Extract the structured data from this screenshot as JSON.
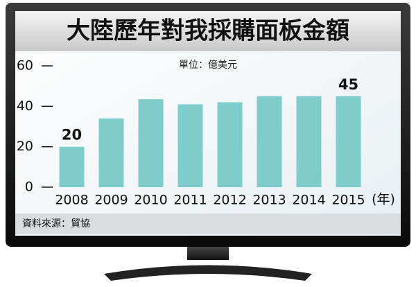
{
  "chart_data": {
    "type": "bar",
    "title": "大陸歷年對我採購面板金額",
    "subtitle": "單位：億美元",
    "categories": [
      "2008",
      "2009",
      "2010",
      "2011",
      "2012",
      "2013",
      "2014",
      "2015"
    ],
    "values": [
      20,
      34,
      43.5,
      41,
      42,
      45,
      45,
      45
    ],
    "labeled": [
      0,
      7
    ],
    "color": "#7ecdcc",
    "ylim": [
      0,
      60
    ],
    "yticks": [
      0,
      20,
      40,
      60
    ],
    "x_unit": "(年)",
    "source": "資料來源：貿協"
  }
}
